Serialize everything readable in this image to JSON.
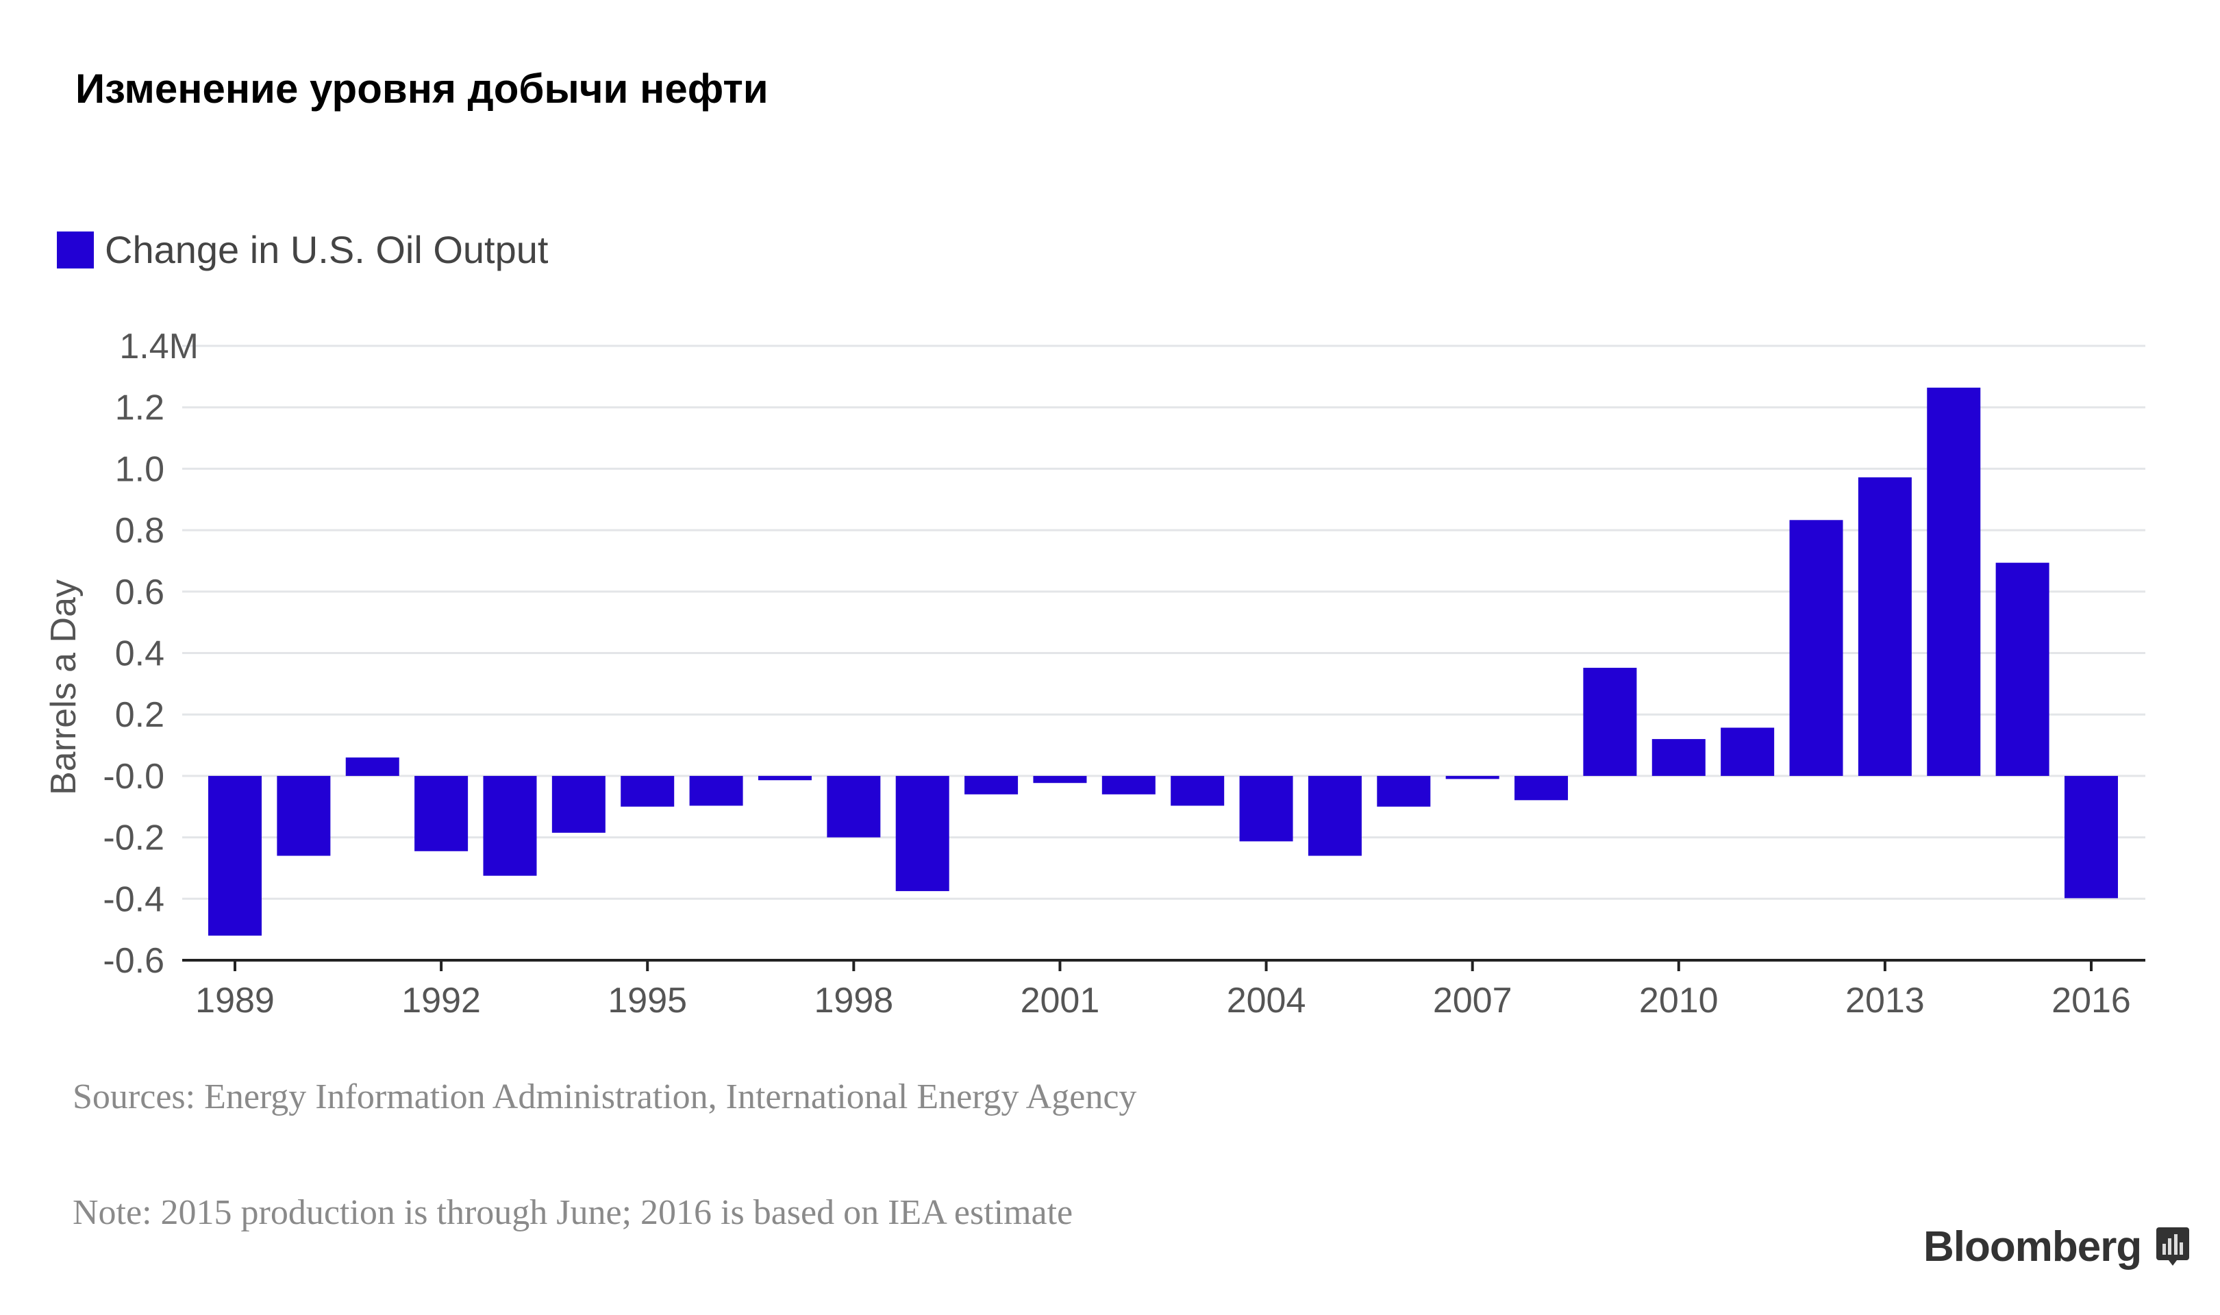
{
  "title": "Изменение уровня добычи нефти",
  "legend": {
    "label": "Change in U.S. Oil Output",
    "color": "#2200d4"
  },
  "sources": "Sources: Energy Information Administration, International Energy Agency",
  "note": "Note: 2015 production is through June; 2016 is based on IEA estimate",
  "brand": "Bloomberg",
  "chart_data": {
    "type": "bar",
    "title": "Изменение уровня добычи нефти",
    "xlabel": "",
    "ylabel": "Barrels a Day",
    "ylim": [
      -0.6,
      1.4
    ],
    "yticks": [
      "1.4M",
      "1.2",
      "1.0",
      "0.8",
      "0.6",
      "0.4",
      "0.2",
      "-0.0",
      "-0.2",
      "-0.4",
      "-0.6"
    ],
    "ytick_values": [
      1.4,
      1.2,
      1.0,
      0.8,
      0.6,
      0.4,
      0.2,
      0,
      -0.2,
      -0.4,
      -0.6
    ],
    "xticks": [
      "1989",
      "1992",
      "1995",
      "1998",
      "2001",
      "2004",
      "2007",
      "2010",
      "2013",
      "2016"
    ],
    "grid": true,
    "legend_position": "top-left",
    "categories": [
      1989,
      1990,
      1991,
      1992,
      1993,
      1994,
      1995,
      1996,
      1997,
      1998,
      1999,
      2000,
      2001,
      2002,
      2003,
      2004,
      2005,
      2006,
      2007,
      2008,
      2009,
      2010,
      2011,
      2012,
      2013,
      2014,
      2015,
      2016
    ],
    "series": [
      {
        "name": "Change in U.S. Oil Output",
        "unit": "million barrels a day",
        "values": [
          -0.52,
          -0.26,
          0.06,
          -0.245,
          -0.325,
          -0.185,
          -0.1,
          -0.097,
          -0.014,
          -0.2,
          -0.375,
          -0.06,
          -0.023,
          -0.06,
          -0.097,
          -0.213,
          -0.26,
          -0.1,
          -0.01,
          -0.079,
          0.352,
          0.12,
          0.157,
          0.833,
          0.972,
          1.264,
          0.694,
          -0.398
        ]
      }
    ]
  }
}
